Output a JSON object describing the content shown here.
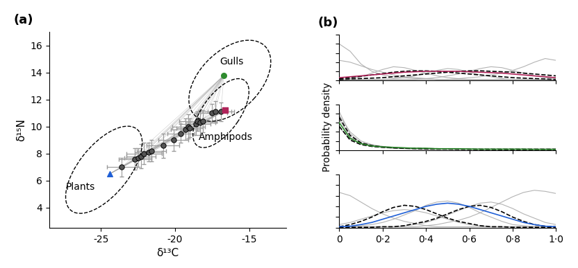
{
  "chart_data": [
    {
      "type": "scatter",
      "title": "(a)",
      "x_label": "δ¹³C",
      "y_label": "δ¹⁵N",
      "xlim": [
        -28.5,
        -12.5
      ],
      "xticks": [
        -25,
        -20,
        -15
      ],
      "ylim": [
        2.5,
        17
      ],
      "yticks": [
        4,
        6,
        8,
        10,
        12,
        14,
        16
      ],
      "consumers": {
        "color": "#555555",
        "marker": "circle",
        "x": [
          -23.6,
          -22.7,
          -22.5,
          -22.3,
          -22.1,
          -21.8,
          -21.6,
          -20.8,
          -20.1,
          -19.6,
          -19.3,
          -19.1,
          -19.0,
          -18.6,
          -18.5,
          -18.3,
          -18.1,
          -17.5,
          -17.3,
          -16.9
        ],
        "y": [
          7.0,
          7.6,
          7.7,
          7.8,
          8.0,
          8.1,
          8.2,
          8.6,
          9.0,
          9.5,
          9.8,
          10.0,
          9.9,
          10.2,
          10.4,
          10.3,
          10.4,
          11.0,
          11.1,
          11.1
        ],
        "x_error": [
          1.0,
          1.1,
          0.9,
          1.0,
          1.2,
          0.9,
          1.0,
          1.1,
          1.0,
          0.9,
          1.0,
          1.1,
          0.9,
          1.0,
          1.2,
          1.0,
          0.9,
          1.0,
          1.1,
          0.9
        ],
        "y_error": [
          0.7,
          0.8,
          0.7,
          0.9,
          0.8,
          0.7,
          0.8,
          0.9,
          0.8,
          0.7,
          0.8,
          0.9,
          0.7,
          0.8,
          0.7,
          0.9,
          0.8,
          0.7,
          0.8,
          0.7
        ]
      },
      "ellipses": [
        {
          "label": "Plants",
          "center": [
            -24.8,
            6.8
          ],
          "width": 7.5,
          "height": 3.5,
          "angle": 55,
          "label_x": -26.4,
          "label_y": 5.5,
          "source": {
            "x": -24.4,
            "y": 6.5,
            "color": "#1f5fd6",
            "marker": "triangle"
          }
        },
        {
          "label": "Gulls",
          "center": [
            -16.3,
            13.4
          ],
          "width": 7.0,
          "height": 4.2,
          "angle": 50,
          "label_x": -16.2,
          "label_y": 14.8,
          "source": {
            "x": -16.7,
            "y": 13.8,
            "color": "#2e8b2e",
            "marker": "circle"
          }
        },
        {
          "label": "Amphipods",
          "center": [
            -16.9,
            11.0
          ],
          "width": 5.8,
          "height": 2.6,
          "angle": 58,
          "label_x": -16.6,
          "label_y": 9.2,
          "source": {
            "x": -16.6,
            "y": 11.2,
            "color": "#b0245a",
            "marker": "square"
          }
        }
      ]
    },
    {
      "type": "line",
      "title": "(b)",
      "tick_labels": false,
      "x": [
        0,
        0.05,
        0.1,
        0.15,
        0.2,
        0.25,
        0.3,
        0.35,
        0.4,
        0.45,
        0.5,
        0.55,
        0.6,
        0.65,
        0.7,
        0.75,
        0.8,
        0.85,
        0.9,
        0.95,
        1.0
      ],
      "xlim": [
        0,
        1
      ],
      "xticks": [
        0,
        {
          "value": 0.2,
          "label": "0·2"
        },
        {
          "value": 0.4,
          "label": "0·4"
        },
        {
          "value": 0.6,
          "label": "0·6"
        },
        {
          "value": 0.8,
          "label": "0·8"
        },
        {
          "value": 1.0,
          "label": "1·0"
        }
      ],
      "ylim": [
        0,
        5
      ],
      "yticks": [
        0,
        1,
        2,
        3,
        4,
        5
      ],
      "series": [
        {
          "color": "#b3b3b3",
          "line_style": "solid",
          "values": [
            4.0,
            3.2,
            1.8,
            1.0,
            0.6,
            0.4,
            0.3,
            0.2,
            0.2,
            0.1,
            0.1,
            0.1,
            0.1,
            0.1,
            0.1,
            0.1,
            0.1,
            0.1,
            0.1,
            0.1,
            0.1
          ]
        },
        {
          "color": "#b3b3b3",
          "line_style": "solid",
          "values": [
            0.1,
            0.2,
            0.4,
            0.8,
            1.2,
            1.5,
            1.4,
            1.1,
            0.8,
            0.5,
            0.3,
            0.2,
            0.1,
            0.1,
            0.1,
            0.1,
            0.1,
            0.1,
            0.1,
            0.1,
            0.1
          ]
        },
        {
          "color": "#b3b3b3",
          "line_style": "solid",
          "values": [
            0.1,
            0.1,
            0.1,
            0.1,
            0.1,
            0.2,
            0.3,
            0.5,
            0.8,
            1.1,
            1.3,
            1.2,
            0.9,
            0.6,
            0.4,
            0.2,
            0.1,
            0.1,
            0.1,
            0.1,
            0.1
          ]
        },
        {
          "color": "#b3b3b3",
          "line_style": "solid",
          "values": [
            0.1,
            0.1,
            0.1,
            0.1,
            0.1,
            0.1,
            0.1,
            0.1,
            0.2,
            0.3,
            0.5,
            0.7,
            1.0,
            1.3,
            1.5,
            1.4,
            1.1,
            0.8,
            0.5,
            0.3,
            0.2
          ]
        },
        {
          "color": "#b3b3b3",
          "line_style": "solid",
          "values": [
            0.1,
            0.1,
            0.1,
            0.1,
            0.1,
            0.1,
            0.1,
            0.1,
            0.1,
            0.1,
            0.1,
            0.2,
            0.3,
            0.4,
            0.6,
            0.8,
            1.1,
            1.5,
            2.0,
            2.4,
            2.2
          ]
        },
        {
          "color": "#b3b3b3",
          "line_style": "solid",
          "values": [
            2.2,
            2.0,
            1.6,
            1.2,
            0.9,
            0.6,
            0.4,
            0.3,
            0.2,
            0.1,
            0.1,
            0.1,
            0.1,
            0.1,
            0.1,
            0.1,
            0.1,
            0.1,
            0.1,
            0.1,
            0.1
          ]
        },
        {
          "color": "#000000",
          "line_style": "dashed",
          "values": [
            0.2,
            0.3,
            0.45,
            0.6,
            0.75,
            0.9,
            1.0,
            1.05,
            1.05,
            1.0,
            0.9,
            0.8,
            0.7,
            0.6,
            0.5,
            0.4,
            0.3,
            0.25,
            0.2,
            0.15,
            0.1
          ]
        },
        {
          "color": "#000000",
          "line_style": "dashed",
          "values": [
            0.1,
            0.15,
            0.2,
            0.25,
            0.3,
            0.4,
            0.5,
            0.6,
            0.7,
            0.8,
            0.9,
            1.0,
            1.05,
            1.05,
            1.0,
            0.95,
            0.9,
            0.8,
            0.7,
            0.6,
            0.5
          ]
        },
        {
          "color": "#b0245a",
          "line_style": "solid",
          "values": [
            0.3,
            0.4,
            0.5,
            0.6,
            0.7,
            0.8,
            0.9,
            0.95,
            1.0,
            1.0,
            1.0,
            1.0,
            0.95,
            0.9,
            0.85,
            0.8,
            0.7,
            0.6,
            0.5,
            0.4,
            0.3
          ]
        }
      ]
    },
    {
      "type": "line",
      "y_label": "Probability density",
      "tick_labels": false,
      "x": [
        0,
        0.05,
        0.1,
        0.15,
        0.2,
        0.25,
        0.3,
        0.35,
        0.4,
        0.45,
        0.5,
        0.55,
        0.6,
        0.65,
        0.7,
        0.75,
        0.8,
        0.85,
        0.9,
        0.95,
        1.0
      ],
      "xlim": [
        0,
        1
      ],
      "xticks": [
        0,
        {
          "value": 0.2,
          "label": "0·2"
        },
        {
          "value": 0.4,
          "label": "0·4"
        },
        {
          "value": 0.6,
          "label": "0·6"
        },
        {
          "value": 0.8,
          "label": "0·8"
        },
        {
          "value": 1.0,
          "label": "1·0"
        }
      ],
      "ylim": [
        0,
        5
      ],
      "yticks": [
        0,
        1,
        2,
        3,
        4,
        5
      ],
      "series": [
        {
          "color": "#b3b3b3",
          "line_style": "solid",
          "values": [
            4.2,
            1.8,
            0.8,
            0.5,
            0.3,
            0.2,
            0.15,
            0.1,
            0.1,
            0.1,
            0.1,
            0.1,
            0.1,
            0.1,
            0.1,
            0.1,
            0.1,
            0.1,
            0.1,
            0.1,
            0.1
          ]
        },
        {
          "color": "#b3b3b3",
          "line_style": "solid",
          "values": [
            3.4,
            1.4,
            0.7,
            0.4,
            0.3,
            0.2,
            0.2,
            0.15,
            0.1,
            0.1,
            0.1,
            0.1,
            0.1,
            0.1,
            0.1,
            0.1,
            0.1,
            0.1,
            0.1,
            0.1,
            0.1
          ]
        },
        {
          "color": "#b3b3b3",
          "line_style": "solid",
          "values": [
            2.5,
            1.2,
            0.7,
            0.5,
            0.4,
            0.3,
            0.25,
            0.2,
            0.2,
            0.15,
            0.15,
            0.1,
            0.1,
            0.1,
            0.1,
            0.1,
            0.1,
            0.1,
            0.1,
            0.1,
            0.1
          ]
        },
        {
          "color": "#b3b3b3",
          "line_style": "solid",
          "values": [
            3.8,
            2.0,
            1.0,
            0.6,
            0.4,
            0.3,
            0.2,
            0.2,
            0.15,
            0.1,
            0.1,
            0.1,
            0.1,
            0.1,
            0.1,
            0.1,
            0.1,
            0.1,
            0.1,
            0.1,
            0.1
          ]
        },
        {
          "color": "#000000",
          "line_style": "dashed",
          "values": [
            3.6,
            1.6,
            0.8,
            0.5,
            0.35,
            0.25,
            0.2,
            0.15,
            0.12,
            0.1,
            0.1,
            0.08,
            0.08,
            0.06,
            0.06,
            0.05,
            0.05,
            0.05,
            0.05,
            0.05,
            0.05
          ]
        },
        {
          "color": "#000000",
          "line_style": "dashed",
          "values": [
            2.6,
            1.1,
            0.6,
            0.4,
            0.3,
            0.25,
            0.2,
            0.2,
            0.15,
            0.15,
            0.12,
            0.12,
            0.1,
            0.1,
            0.1,
            0.1,
            0.1,
            0.1,
            0.1,
            0.1,
            0.1
          ]
        },
        {
          "color": "#2e8b2e",
          "line_style": "solid",
          "values": [
            3.0,
            1.3,
            0.7,
            0.45,
            0.35,
            0.3,
            0.25,
            0.2,
            0.2,
            0.15,
            0.15,
            0.15,
            0.12,
            0.1,
            0.1,
            0.1,
            0.1,
            0.1,
            0.08,
            0.08,
            0.08
          ]
        }
      ]
    },
    {
      "type": "line",
      "tick_labels": "x",
      "x": [
        0,
        0.05,
        0.1,
        0.15,
        0.2,
        0.25,
        0.3,
        0.35,
        0.4,
        0.45,
        0.5,
        0.55,
        0.6,
        0.65,
        0.7,
        0.75,
        0.8,
        0.85,
        0.9,
        0.95,
        1.0
      ],
      "xlim": [
        0,
        1
      ],
      "xticks": [
        0,
        {
          "value": 0.2,
          "label": "0·2"
        },
        {
          "value": 0.4,
          "label": "0·4"
        },
        {
          "value": 0.6,
          "label": "0·6"
        },
        {
          "value": 0.8,
          "label": "0·8"
        },
        {
          "value": 1.0,
          "label": "1·0"
        }
      ],
      "ylim": [
        0,
        5
      ],
      "yticks": [
        0,
        1,
        2,
        3,
        4,
        5
      ],
      "series": [
        {
          "color": "#b3b3b3",
          "line_style": "solid",
          "values": [
            0.1,
            0.1,
            0.1,
            0.1,
            0.1,
            0.1,
            0.1,
            0.1,
            0.2,
            0.3,
            0.5,
            0.7,
            1.0,
            1.4,
            1.9,
            2.4,
            2.9,
            3.3,
            3.5,
            3.4,
            3.2
          ]
        },
        {
          "color": "#b3b3b3",
          "line_style": "solid",
          "values": [
            0.3,
            0.5,
            0.8,
            1.1,
            1.4,
            1.6,
            1.7,
            1.6,
            1.4,
            1.1,
            0.8,
            0.5,
            0.3,
            0.2,
            0.1,
            0.1,
            0.1,
            0.1,
            0.1,
            0.1,
            0.1
          ]
        },
        {
          "color": "#b3b3b3",
          "line_style": "solid",
          "values": [
            0.1,
            0.1,
            0.2,
            0.3,
            0.5,
            0.8,
            1.2,
            1.6,
            2.1,
            2.4,
            2.5,
            2.3,
            1.9,
            1.4,
            1.0,
            0.6,
            0.3,
            0.2,
            0.1,
            0.1,
            0.1
          ]
        },
        {
          "color": "#b3b3b3",
          "line_style": "solid",
          "values": [
            3.3,
            3.0,
            2.4,
            1.8,
            1.3,
            0.9,
            0.6,
            0.4,
            0.2,
            0.1,
            0.1,
            0.1,
            0.1,
            0.1,
            0.1,
            0.1,
            0.1,
            0.1,
            0.1,
            0.1,
            0.1
          ]
        },
        {
          "color": "#b3b3b3",
          "line_style": "solid",
          "values": [
            0.1,
            0.1,
            0.1,
            0.1,
            0.1,
            0.1,
            0.2,
            0.3,
            0.5,
            0.8,
            1.2,
            1.6,
            2.0,
            2.3,
            2.4,
            2.2,
            1.8,
            1.3,
            0.9,
            0.5,
            0.3
          ]
        },
        {
          "color": "#000000",
          "line_style": "dashed",
          "values": [
            0.1,
            0.3,
            0.6,
            1.0,
            1.5,
            1.9,
            2.1,
            2.0,
            1.7,
            1.3,
            0.9,
            0.6,
            0.4,
            0.2,
            0.1,
            0.1,
            0.05,
            0.05,
            0.05,
            0.05,
            0.05
          ]
        },
        {
          "color": "#000000",
          "line_style": "dashed",
          "values": [
            0.05,
            0.05,
            0.05,
            0.05,
            0.1,
            0.1,
            0.2,
            0.4,
            0.6,
            0.9,
            1.3,
            1.7,
            2.0,
            2.1,
            1.9,
            1.5,
            1.0,
            0.6,
            0.3,
            0.15,
            0.1
          ]
        },
        {
          "color": "#1f5fd6",
          "line_style": "solid",
          "values": [
            0.1,
            0.15,
            0.3,
            0.5,
            0.8,
            1.1,
            1.4,
            1.7,
            2.0,
            2.2,
            2.3,
            2.2,
            2.0,
            1.7,
            1.4,
            1.1,
            0.8,
            0.5,
            0.3,
            0.15,
            0.1
          ]
        }
      ]
    }
  ]
}
